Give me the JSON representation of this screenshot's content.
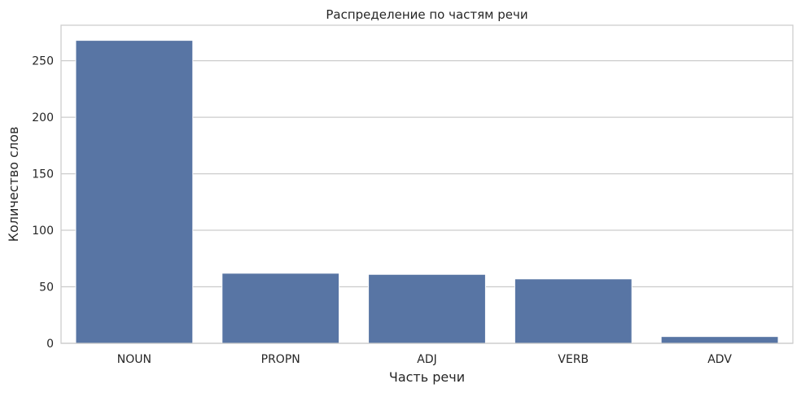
{
  "chart_data": {
    "type": "bar",
    "title": "Распределение по частям речи",
    "xlabel": "Часть речи",
    "ylabel": "Количество слов",
    "categories": [
      "NOUN",
      "PROPN",
      "ADJ",
      "VERB",
      "ADV"
    ],
    "values": [
      268,
      62,
      61,
      57,
      6
    ],
    "ylim": [
      0,
      281.4
    ],
    "yticks": [
      0,
      50,
      100,
      150,
      200,
      250
    ],
    "grid": true,
    "colors": {
      "bar": "#5875a4",
      "bar_edge": "#ffffff",
      "grid": "#cccccc",
      "spine": "#cccccc",
      "text": "#262626"
    }
  }
}
